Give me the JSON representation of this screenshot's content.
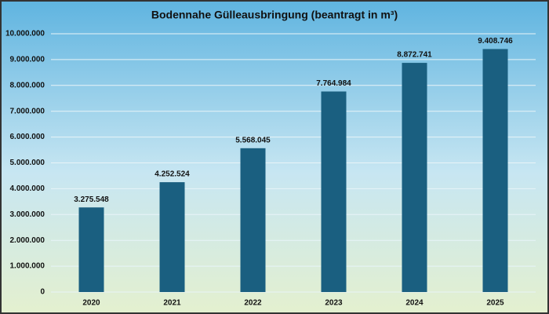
{
  "chart_data": {
    "type": "bar",
    "title": "Bodennahe Gülleausbringung (beantragt in m³)",
    "categories": [
      "2020",
      "2021",
      "2022",
      "2023",
      "2024",
      "2025"
    ],
    "values": [
      3275548,
      4252524,
      5568045,
      7764984,
      8872741,
      9408746
    ],
    "value_labels": [
      "3.275.548",
      "4.252.524",
      "5.568.045",
      "7.764.984",
      "8.872.741",
      "9.408.746"
    ],
    "color": "#1a5f80",
    "ylim": [
      0,
      10000000
    ],
    "yticks": [
      0,
      {
        "value": 1000000,
        "label": "1.000.000"
      },
      {
        "value": 2000000,
        "label": "2.000.000"
      },
      {
        "value": 3000000,
        "label": "3.000.000"
      },
      {
        "value": 4000000,
        "label": "4.000.000"
      },
      {
        "value": 5000000,
        "label": "5.000.000"
      },
      {
        "value": 6000000,
        "label": "6.000.000"
      },
      {
        "value": 7000000,
        "label": "7.000.000"
      },
      {
        "value": 8000000,
        "label": "8.000.000"
      },
      {
        "value": 9000000,
        "label": "9.000.000"
      },
      {
        "value": 10000000,
        "label": "10.000.000"
      }
    ],
    "grid": true
  }
}
